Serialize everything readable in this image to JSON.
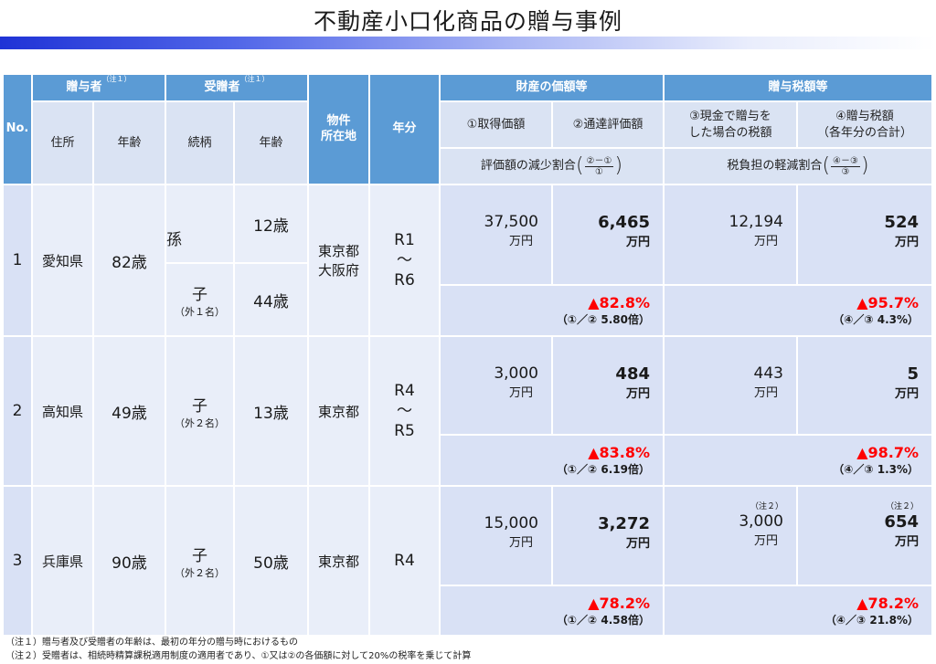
{
  "title": "不動産小口化商品の贈与事例",
  "header": {
    "no": "No.",
    "giver": "贈与者",
    "giver_note": "（注１）",
    "receiver": "受贈者",
    "receiver_note": "（注１）",
    "location": "物件\n所在地",
    "years": "年分",
    "asset_value": "財産の価額等",
    "tax_amount": "贈与税額等",
    "address": "住所",
    "age": "年齢",
    "relation": "続柄",
    "age2": "年齢",
    "col1": "①取得価額",
    "col2": "②通達評価額",
    "col3": "③現金で贈与を\nした場合の税額",
    "col4": "④贈与税額\n（各年分の合計）",
    "reduction_label": "評価額の減少割合",
    "reduction_top": "②－①",
    "reduction_bottom": "①",
    "tax_reduction_label": "税負担の軽減割合",
    "tax_reduction_top": "④－③",
    "tax_reduction_bottom": "③"
  },
  "rows": [
    {
      "no": "1",
      "address": "愛知県",
      "giver_age": "82歳",
      "receivers": [
        {
          "relation": "孫",
          "relation_sub": "",
          "age": "12歳"
        },
        {
          "relation": "子",
          "relation_sub": "（外１名）",
          "age": "44歳"
        }
      ],
      "location": "東京都\n大阪府",
      "years": "R1\n～\nR6",
      "acq": "37,500",
      "eval": "6,465",
      "cash_tax": "12,194",
      "gift_tax": "524",
      "unit": "万円",
      "cash_note": "",
      "gift_note": "",
      "reduction": "▲82.8%",
      "reduction_sub": "（①／②  5.80倍）",
      "tax_reduction": "▲95.7%",
      "tax_reduction_sub": "（④／③  4.3%）"
    },
    {
      "no": "2",
      "address": "高知県",
      "giver_age": "49歳",
      "receivers": [
        {
          "relation": "子",
          "relation_sub": "（外２名）",
          "age": "13歳"
        }
      ],
      "location": "東京都",
      "years": "R4\n～\nR5",
      "acq": "3,000",
      "eval": "484",
      "cash_tax": "443",
      "gift_tax": "5",
      "unit": "万円",
      "cash_note": "",
      "gift_note": "",
      "reduction": "▲83.8%",
      "reduction_sub": "（①／②  6.19倍）",
      "tax_reduction": "▲98.7%",
      "tax_reduction_sub": "（④／③  1.3%）"
    },
    {
      "no": "3",
      "address": "兵庫県",
      "giver_age": "90歳",
      "receivers": [
        {
          "relation": "子",
          "relation_sub": "（外２名）",
          "age": "50歳"
        }
      ],
      "location": "東京都",
      "years": "R4",
      "acq": "15,000",
      "eval": "3,272",
      "cash_tax": "3,000",
      "gift_tax": "654",
      "unit": "万円",
      "cash_note": "（注２）",
      "gift_note": "（注２）",
      "reduction": "▲78.2%",
      "reduction_sub": "（①／②  4.58倍）",
      "tax_reduction": "▲78.2%",
      "tax_reduction_sub": "（④／③  21.8%）"
    }
  ],
  "notes": [
    "（注１）贈与者及び受贈者の年齢は、最初の年分の贈与時におけるもの",
    "（注２）受贈者は、相続時精算課税適用制度の適用者であり、①又は②の各価額に対して20%の税率を乗じて計算"
  ],
  "colors": {
    "header": "#5b9bd5",
    "row_light": "#e9eef9",
    "row_mid": "#d9e1f5",
    "accent_red": "#ff0000",
    "title_bar": "#1f33d6"
  }
}
